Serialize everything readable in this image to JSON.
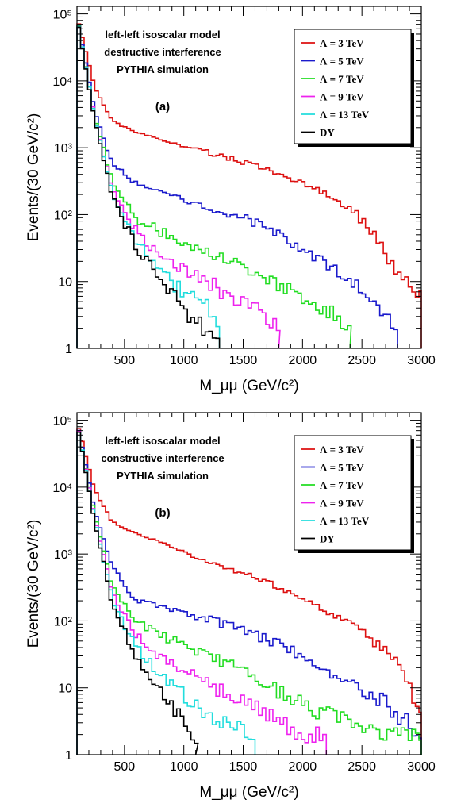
{
  "chart_data": [
    {
      "type": "line",
      "panel_label": "(a)",
      "annotation_lines": [
        "left-left isoscalar model",
        "destructive interference",
        "PYTHIA simulation"
      ],
      "xlabel": "M_μμ (GeV/c²)",
      "ylabel": "Events/(30 GeV/c²)",
      "xlim": [
        100,
        3000
      ],
      "ylim": [
        1,
        130000
      ],
      "yscale": "log",
      "x_ticks": [
        500,
        1000,
        1500,
        2000,
        2500,
        3000
      ],
      "y_ticks": [
        {
          "value": 1,
          "label": "1"
        },
        {
          "value": 10,
          "label": "10"
        },
        {
          "value": 100,
          "label": "10²"
        },
        {
          "value": 1000,
          "label": "10³"
        },
        {
          "value": 10000,
          "label": "10⁴"
        },
        {
          "value": 100000,
          "label": "10⁵"
        }
      ],
      "grid": false,
      "legend_position": "top-right",
      "series": [
        {
          "name": "Λ = 3 TeV",
          "color": "#dd1111",
          "points": [
            [
              100,
              90000
            ],
            [
              250,
              8000
            ],
            [
              400,
              2500
            ],
            [
              600,
              1700
            ],
            [
              800,
              1350
            ],
            [
              1000,
              1050
            ],
            [
              1200,
              850
            ],
            [
              1400,
              680
            ],
            [
              1600,
              550
            ],
            [
              1800,
              400
            ],
            [
              2000,
              300
            ],
            [
              2200,
              200
            ],
            [
              2400,
              120
            ],
            [
              2600,
              55
            ],
            [
              2700,
              25
            ],
            [
              2800,
              14
            ],
            [
              2900,
              9
            ],
            [
              3000,
              7
            ]
          ]
        },
        {
          "name": "Λ = 5 TeV",
          "color": "#1a1acc",
          "points": [
            [
              100,
              90000
            ],
            [
              250,
              3500
            ],
            [
              400,
              550
            ],
            [
              600,
              280
            ],
            [
              800,
              210
            ],
            [
              1000,
              165
            ],
            [
              1200,
              125
            ],
            [
              1400,
              95
            ],
            [
              1600,
              75
            ],
            [
              1800,
              50
            ],
            [
              2000,
              30
            ],
            [
              2200,
              18
            ],
            [
              2400,
              10
            ],
            [
              2600,
              5
            ],
            [
              2700,
              3
            ],
            [
              2800,
              2
            ]
          ]
        },
        {
          "name": "Λ = 7 TeV",
          "color": "#22dd22",
          "points": [
            [
              100,
              90000
            ],
            [
              250,
              3000
            ],
            [
              400,
              300
            ],
            [
              600,
              90
            ],
            [
              800,
              55
            ],
            [
              1000,
              40
            ],
            [
              1200,
              28
            ],
            [
              1400,
              20
            ],
            [
              1600,
              14
            ],
            [
              1800,
              9
            ],
            [
              2000,
              6
            ],
            [
              2200,
              4
            ],
            [
              2400,
              2
            ]
          ]
        },
        {
          "name": "Λ = 9 TeV",
          "color": "#ee22ee",
          "points": [
            [
              100,
              90000
            ],
            [
              250,
              2800
            ],
            [
              400,
              230
            ],
            [
              600,
              55
            ],
            [
              800,
              25
            ],
            [
              1000,
              15
            ],
            [
              1200,
              10
            ],
            [
              1400,
              6
            ],
            [
              1600,
              4
            ],
            [
              1800,
              2
            ]
          ]
        },
        {
          "name": "Λ = 13 TeV",
          "color": "#22dddd",
          "points": [
            [
              100,
              90000
            ],
            [
              250,
              2700
            ],
            [
              400,
              200
            ],
            [
              600,
              40
            ],
            [
              800,
              15
            ],
            [
              1000,
              7
            ],
            [
              1200,
              4
            ],
            [
              1300,
              2
            ]
          ]
        },
        {
          "name": "DY",
          "color": "#000000",
          "points": [
            [
              100,
              90000
            ],
            [
              250,
              2600
            ],
            [
              400,
              180
            ],
            [
              600,
              32
            ],
            [
              800,
              11
            ],
            [
              1000,
              4
            ],
            [
              1100,
              2.5
            ],
            [
              1300,
              1.5
            ]
          ]
        }
      ]
    },
    {
      "type": "line",
      "panel_label": "(b)",
      "annotation_lines": [
        "left-left isoscalar model",
        "constructive interference",
        "PYTHIA simulation"
      ],
      "xlabel": "M_μμ (GeV/c²)",
      "ylabel": "Events/(30 GeV/c²)",
      "xlim": [
        100,
        3000
      ],
      "ylim": [
        1,
        130000
      ],
      "yscale": "log",
      "x_ticks": [
        500,
        1000,
        1500,
        2000,
        2500,
        3000
      ],
      "y_ticks": [
        {
          "value": 1,
          "label": "1"
        },
        {
          "value": 10,
          "label": "10"
        },
        {
          "value": 100,
          "label": "10²"
        },
        {
          "value": 1000,
          "label": "10³"
        },
        {
          "value": 10000,
          "label": "10⁴"
        },
        {
          "value": 100000,
          "label": "10⁵"
        }
      ],
      "grid": false,
      "legend_position": "top-right",
      "series": [
        {
          "name": "Λ = 3 TeV",
          "color": "#dd1111",
          "points": [
            [
              100,
              95000
            ],
            [
              250,
              9000
            ],
            [
              400,
              3000
            ],
            [
              600,
              2000
            ],
            [
              800,
              1500
            ],
            [
              1000,
              1100
            ],
            [
              1200,
              800
            ],
            [
              1400,
              600
            ],
            [
              1600,
              450
            ],
            [
              1800,
              320
            ],
            [
              2000,
              220
            ],
            [
              2200,
              140
            ],
            [
              2400,
              90
            ],
            [
              2600,
              50
            ],
            [
              2800,
              25
            ],
            [
              2900,
              12
            ],
            [
              3000,
              3
            ]
          ]
        },
        {
          "name": "Λ = 5 TeV",
          "color": "#1a1acc",
          "points": [
            [
              100,
              95000
            ],
            [
              250,
              4500
            ],
            [
              400,
              600
            ],
            [
              600,
              200
            ],
            [
              800,
              160
            ],
            [
              1000,
              130
            ],
            [
              1200,
              100
            ],
            [
              1400,
              80
            ],
            [
              1600,
              60
            ],
            [
              1800,
              45
            ],
            [
              2000,
              30
            ],
            [
              2200,
              18
            ],
            [
              2400,
              12
            ],
            [
              2600,
              8
            ],
            [
              2800,
              4
            ],
            [
              3000,
              2
            ]
          ]
        },
        {
          "name": "Λ = 7 TeV",
          "color": "#22dd22",
          "points": [
            [
              100,
              95000
            ],
            [
              250,
              3800
            ],
            [
              400,
              320
            ],
            [
              600,
              100
            ],
            [
              800,
              60
            ],
            [
              1000,
              45
            ],
            [
              1200,
              30
            ],
            [
              1400,
              22
            ],
            [
              1600,
              14
            ],
            [
              1800,
              9
            ],
            [
              2000,
              6
            ],
            [
              2200,
              4
            ],
            [
              2400,
              3
            ],
            [
              2600,
              2
            ],
            [
              2800,
              2
            ],
            [
              3000,
              2
            ]
          ]
        },
        {
          "name": "Λ = 9 TeV",
          "color": "#ee22ee",
          "points": [
            [
              100,
              95000
            ],
            [
              250,
              3500
            ],
            [
              400,
              250
            ],
            [
              600,
              60
            ],
            [
              800,
              30
            ],
            [
              1000,
              18
            ],
            [
              1200,
              12
            ],
            [
              1400,
              7
            ],
            [
              1600,
              5
            ],
            [
              1800,
              3
            ],
            [
              2000,
              2
            ],
            [
              2200,
              2
            ]
          ]
        },
        {
          "name": "Λ = 13 TeV",
          "color": "#22dddd",
          "points": [
            [
              100,
              95000
            ],
            [
              250,
              3200
            ],
            [
              400,
              200
            ],
            [
              600,
              40
            ],
            [
              800,
              15
            ],
            [
              1000,
              8
            ],
            [
              1200,
              4
            ],
            [
              1400,
              2.5
            ],
            [
              1600,
              2
            ]
          ]
        },
        {
          "name": "DY",
          "color": "#000000",
          "points": [
            [
              100,
              95000
            ],
            [
              250,
              3000
            ],
            [
              400,
              170
            ],
            [
              600,
              30
            ],
            [
              800,
              10
            ],
            [
              900,
              6
            ],
            [
              1000,
              3
            ],
            [
              1100,
              2
            ]
          ]
        }
      ]
    }
  ]
}
